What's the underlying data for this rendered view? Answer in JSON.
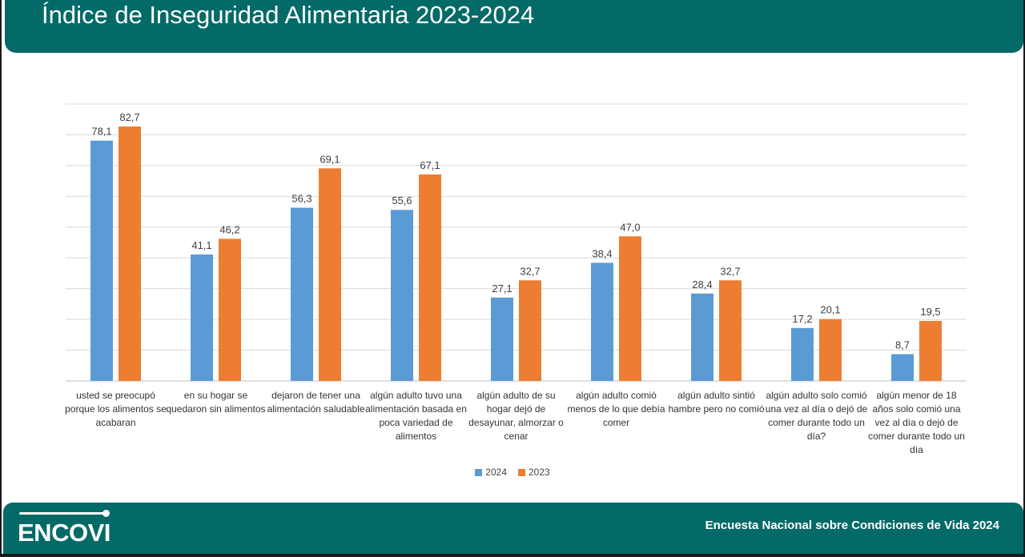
{
  "header": {
    "title": "Índice de Inseguridad Alimentaria 2023-2024"
  },
  "footer": {
    "logo": "ENCOVI",
    "source": "Encuesta Nacional sobre Condiciones de Vida 2024"
  },
  "colors": {
    "header_bg": "#046a67",
    "series_2024": "#5b9bd5",
    "series_2023": "#ed7d31"
  },
  "chart_data": {
    "type": "bar",
    "title": "",
    "xlabel": "",
    "ylabel": "",
    "ylim": [
      0,
      90
    ],
    "grid": true,
    "legend_placement": "bottom-center",
    "categories": [
      "usted se preocupó porque los alimentos se acabaran",
      "en su hogar se quedaron sin alimentos",
      "dejaron de tener una alimentación saludable",
      "algún adulto tuvo una alimentación basada en poca variedad de alimentos",
      "algún adulto de su hogar dejó de desayunar, almorzar o cenar",
      "algún adulto comió menos de lo que debía comer",
      "algún adulto sintió hambre pero no comió",
      "algún adulto solo comió una vez al día o dejó de comer durante todo un día?",
      "algún menor de 18 años solo comió una vez al día o dejó de comer durante todo un día"
    ],
    "series": [
      {
        "name": "2024",
        "color": "#5b9bd5",
        "values": [
          78.1,
          41.1,
          56.3,
          55.6,
          27.1,
          38.4,
          28.4,
          17.2,
          8.7
        ],
        "labels": [
          "78,1",
          "41,1",
          "56,3",
          "55,6",
          "27,1",
          "38,4",
          "28,4",
          "17,2",
          "8,7"
        ]
      },
      {
        "name": "2023",
        "color": "#ed7d31",
        "values": [
          82.7,
          46.2,
          69.1,
          67.1,
          32.7,
          47.0,
          32.7,
          20.1,
          19.5
        ],
        "labels": [
          "82,7",
          "46,2",
          "69,1",
          "67,1",
          "32,7",
          "47,0",
          "32,7",
          "20,1",
          "19,5"
        ]
      }
    ]
  }
}
